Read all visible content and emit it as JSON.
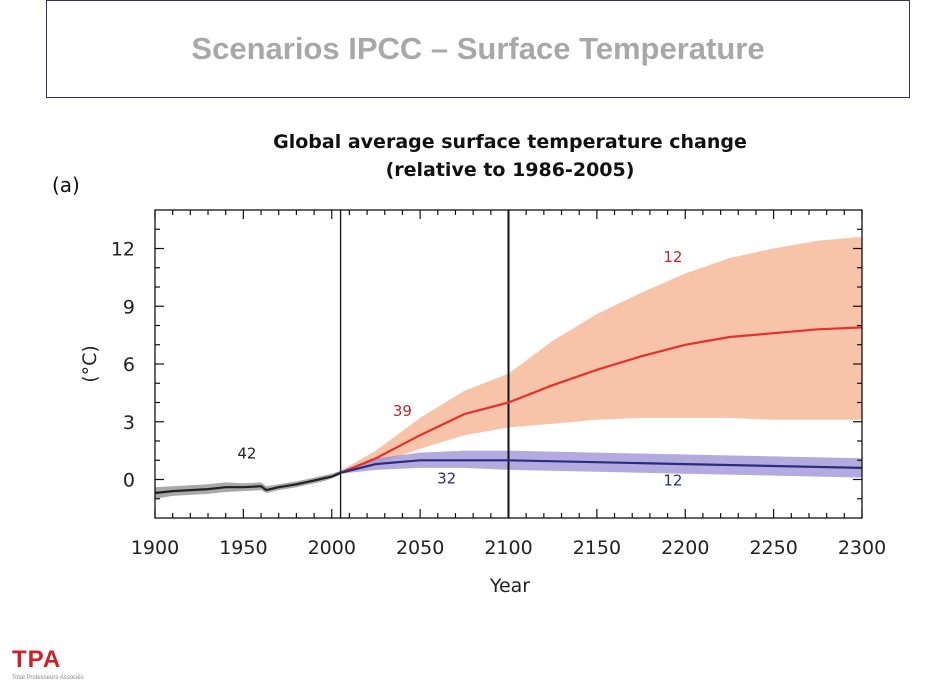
{
  "slide": {
    "title": "Scenarios IPCC – Surface Temperature"
  },
  "logo": {
    "mark": "TPA",
    "tagline": "Total Professeurs Associés"
  },
  "colors": {
    "historical": "#222222",
    "high_scenario_line": "#e8302a",
    "high_scenario_band": "#f6b99a",
    "low_scenario_line": "#2c2c7c",
    "low_scenario_band": "#9a8fd6",
    "logo_red": "#d1202a",
    "title_grey": "#a8a8a8"
  },
  "chart_data": {
    "type": "line",
    "panel_label": "(a)",
    "title": "Global average surface temperature change",
    "subtitle": "(relative to 1986-2005)",
    "xlabel": "Year",
    "ylabel": "(°C)",
    "xlim": [
      1900,
      2300
    ],
    "ylim": [
      -2,
      14
    ],
    "xticks": [
      1900,
      1950,
      2000,
      2050,
      2100,
      2150,
      2200,
      2250,
      2300
    ],
    "yticks": [
      0,
      3,
      6,
      9,
      12
    ],
    "vertical_lines": [
      2005,
      2100
    ],
    "series": [
      {
        "key": "historical",
        "x": [
          1900,
          1910,
          1920,
          1930,
          1940,
          1950,
          1960,
          1963,
          1970,
          1980,
          1985,
          1990,
          1995,
          2000,
          2005
        ],
        "values": [
          -0.7,
          -0.6,
          -0.55,
          -0.5,
          -0.4,
          -0.4,
          -0.35,
          -0.55,
          -0.4,
          -0.25,
          -0.15,
          -0.05,
          0.05,
          0.15,
          0.35
        ],
        "band_low": [
          -1.0,
          -0.85,
          -0.8,
          -0.75,
          -0.65,
          -0.6,
          -0.55,
          -0.7,
          -0.55,
          -0.4,
          -0.3,
          -0.2,
          -0.1,
          0.05,
          0.25
        ],
        "band_high": [
          -0.4,
          -0.35,
          -0.3,
          -0.25,
          -0.15,
          -0.2,
          -0.15,
          -0.35,
          -0.25,
          -0.1,
          0.0,
          0.1,
          0.2,
          0.3,
          0.45
        ]
      },
      {
        "key": "high",
        "x": [
          2005,
          2025,
          2050,
          2075,
          2100,
          2125,
          2150,
          2175,
          2200,
          2225,
          2250,
          2275,
          2300
        ],
        "values": [
          0.35,
          1.1,
          2.3,
          3.4,
          4.0,
          4.9,
          5.7,
          6.4,
          7.0,
          7.4,
          7.6,
          7.8,
          7.9
        ],
        "band_low": [
          0.3,
          0.8,
          1.6,
          2.3,
          2.7,
          2.9,
          3.1,
          3.2,
          3.2,
          3.2,
          3.1,
          3.1,
          3.1
        ],
        "band_high": [
          0.45,
          1.5,
          3.2,
          4.6,
          5.5,
          7.2,
          8.6,
          9.7,
          10.7,
          11.5,
          12.0,
          12.4,
          12.6
        ]
      },
      {
        "key": "low",
        "x": [
          2005,
          2025,
          2050,
          2075,
          2100,
          2150,
          2200,
          2250,
          2300
        ],
        "values": [
          0.35,
          0.8,
          1.0,
          1.0,
          1.0,
          0.9,
          0.8,
          0.7,
          0.6
        ],
        "band_low": [
          0.3,
          0.5,
          0.6,
          0.6,
          0.5,
          0.4,
          0.3,
          0.2,
          0.1
        ],
        "band_high": [
          0.45,
          1.1,
          1.4,
          1.5,
          1.5,
          1.4,
          1.3,
          1.2,
          1.1
        ]
      }
    ],
    "annotations": [
      {
        "text": "42",
        "x": 1952,
        "y": 1.1,
        "color": "#222222"
      },
      {
        "text": "39",
        "x": 2040,
        "y": 3.3,
        "color": "#c0272d"
      },
      {
        "text": "32",
        "x": 2065,
        "y": -0.2,
        "color": "#2c2c7c"
      },
      {
        "text": "12",
        "x": 2193,
        "y": 11.3,
        "color": "#c0272d"
      },
      {
        "text": "12",
        "x": 2193,
        "y": -0.3,
        "color": "#2c2c7c"
      }
    ]
  }
}
